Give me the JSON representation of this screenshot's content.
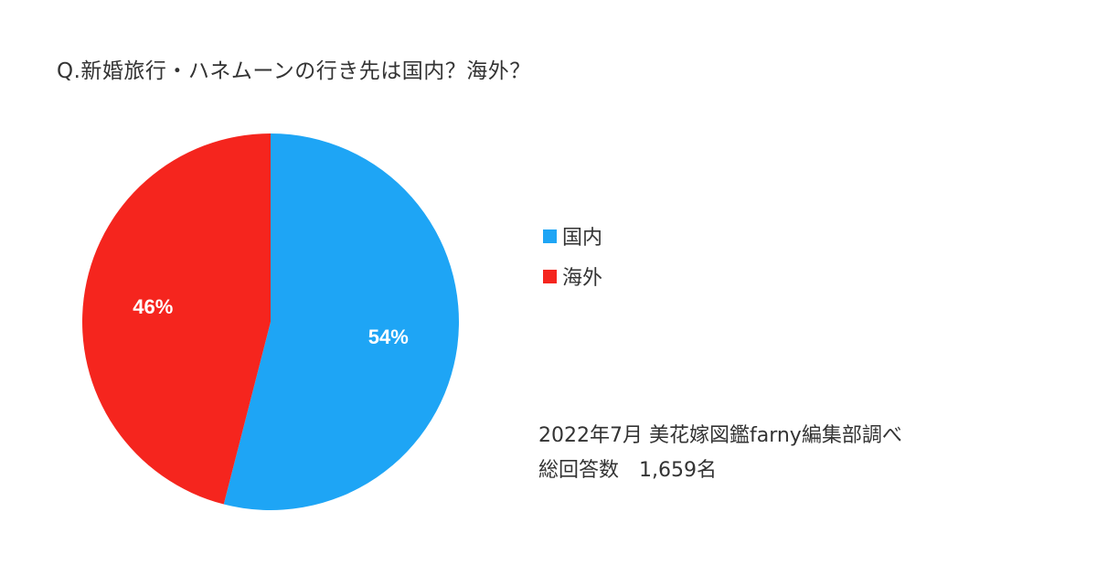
{
  "title": "Q.新婚旅行・ハネムーンの行き先は国内？海外？",
  "chart_data": {
    "type": "pie",
    "title": "Q.新婚旅行・ハネムーンの行き先は国内？海外？",
    "categories": [
      "国内",
      "海外"
    ],
    "values": [
      54,
      46
    ],
    "labels": [
      "54%",
      "46%"
    ],
    "colors": [
      "#1ea5f5",
      "#f5251e"
    ],
    "legend_position": "right",
    "start": "12 o'clock, clockwise"
  },
  "legend": {
    "items": [
      {
        "label": "国内",
        "color": "#1ea5f5"
      },
      {
        "label": "海外",
        "color": "#f5251e"
      }
    ]
  },
  "note": {
    "line1": "2022年7月 美花嫁図鑑farny編集部調べ",
    "line2": "総回答数　1,659名"
  }
}
